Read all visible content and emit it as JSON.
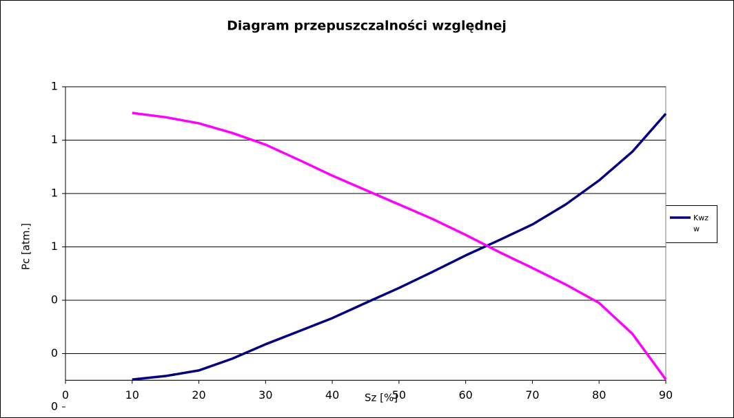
{
  "chart_data": {
    "type": "line",
    "title": "Diagram przepuszczalności względnej",
    "x_label": "Sz [%]",
    "y_label": "Pc [atm.]",
    "x": [
      10,
      15,
      20,
      25,
      30,
      35,
      40,
      45,
      50,
      55,
      60,
      65,
      70,
      75,
      80,
      85,
      90
    ],
    "series": [
      {
        "name": "Kwzw",
        "color": "#000080",
        "values": [
          0.103,
          0.116,
          0.137,
          0.181,
          0.235,
          0.284,
          0.333,
          0.39,
          0.446,
          0.506,
          0.568,
          0.625,
          0.684,
          0.759,
          0.849,
          0.957,
          1.099
        ]
      },
      {
        "color": "#ff00ff",
        "values": [
          1.102,
          1.086,
          1.063,
          1.027,
          0.983,
          0.926,
          0.867,
          0.813,
          0.759,
          0.705,
          0.645,
          0.581,
          0.521,
          0.459,
          0.39,
          0.274,
          0.103
        ]
      }
    ],
    "xlim": [
      0,
      90
    ],
    "xticks": [
      0,
      10,
      20,
      30,
      40,
      50,
      60,
      70,
      80,
      90
    ],
    "ylim": [
      0.1,
      1.2
    ],
    "yticks": [
      {
        "value": 1.2,
        "label": "1"
      },
      {
        "value": 1.0,
        "label": "1"
      },
      {
        "value": 0.8,
        "label": "1"
      },
      {
        "value": 0.6,
        "label": "1"
      },
      {
        "value": 0.4,
        "label": "0"
      },
      {
        "value": 0.2,
        "label": "0"
      },
      0
    ],
    "grid": true,
    "legend": "right"
  }
}
